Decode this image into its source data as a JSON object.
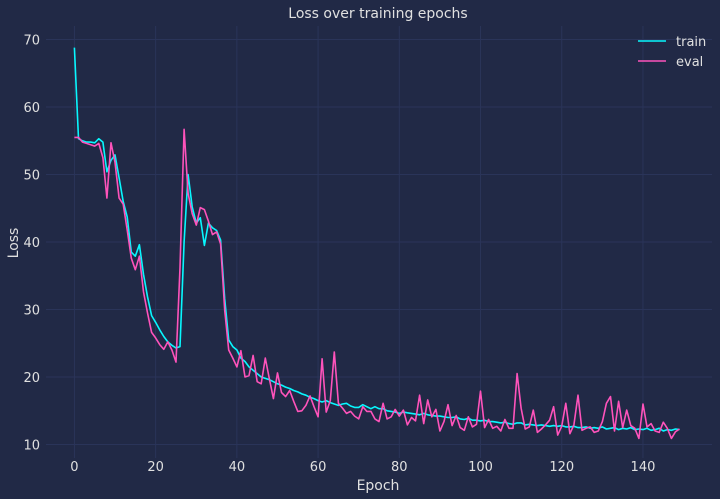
{
  "chart_data": {
    "type": "line",
    "title": "Loss over training epochs",
    "xlabel": "Epoch",
    "ylabel": "Loss",
    "xlim": [
      -7,
      157
    ],
    "ylim": [
      8,
      72
    ],
    "xticks": [
      0,
      20,
      40,
      60,
      80,
      100,
      120,
      140
    ],
    "yticks": [
      10,
      20,
      30,
      40,
      50,
      60,
      70
    ],
    "grid": true,
    "legend_position": "top-right",
    "colors": {
      "background": "#212946",
      "grid": "#2A3459",
      "text": "#e0e0e0"
    },
    "series": [
      {
        "name": "train",
        "color": "#08F7FE",
        "x": [
          0,
          1,
          2,
          3,
          4,
          5,
          6,
          7,
          8,
          9,
          10,
          11,
          12,
          13,
          14,
          15,
          16,
          17,
          18,
          19,
          20,
          21,
          22,
          23,
          24,
          25,
          26,
          27,
          28,
          29,
          30,
          31,
          32,
          33,
          34,
          35,
          36,
          37,
          38,
          39,
          40,
          41,
          42,
          43,
          44,
          45,
          46,
          47,
          48,
          49,
          50,
          51,
          52,
          53,
          54,
          55,
          56,
          57,
          58,
          59,
          60,
          61,
          62,
          63,
          64,
          65,
          66,
          67,
          68,
          69,
          70,
          71,
          72,
          73,
          74,
          75,
          76,
          77,
          78,
          79,
          80,
          81,
          82,
          83,
          84,
          85,
          86,
          87,
          88,
          89,
          90,
          91,
          92,
          93,
          94,
          95,
          96,
          97,
          98,
          99,
          100,
          101,
          102,
          103,
          104,
          105,
          106,
          107,
          108,
          109,
          110,
          111,
          112,
          113,
          114,
          115,
          116,
          117,
          118,
          119,
          120,
          121,
          122,
          123,
          124,
          125,
          126,
          127,
          128,
          129,
          130,
          131,
          132,
          133,
          134,
          135,
          136,
          137,
          138,
          139,
          140,
          141,
          142,
          143,
          144,
          145,
          146,
          147,
          148,
          149
        ],
        "y": [
          68.8,
          55.3,
          55.0,
          54.8,
          54.8,
          54.7,
          55.3,
          54.8,
          50.4,
          52.1,
          52.9,
          49.5,
          46.0,
          43.7,
          38.5,
          37.9,
          39.6,
          35.2,
          31.9,
          29.1,
          28.1,
          27.0,
          26.0,
          25.2,
          24.7,
          24.3,
          24.5,
          40.0,
          50.0,
          45.2,
          42.8,
          43.6,
          39.5,
          42.8,
          42.1,
          41.7,
          40.3,
          31.6,
          25.5,
          24.5,
          24.0,
          22.8,
          22.3,
          21.5,
          21.0,
          20.5,
          20.0,
          19.8,
          19.6,
          19.3,
          19.0,
          18.8,
          18.5,
          18.3,
          18.0,
          17.8,
          17.5,
          17.3,
          17.0,
          16.8,
          16.5,
          16.3,
          16.5,
          16.2,
          16.0,
          15.8,
          16.0,
          16.1,
          15.7,
          15.5,
          15.5,
          15.9,
          15.6,
          15.3,
          15.6,
          15.3,
          15.3,
          15.0,
          14.9,
          14.8,
          14.6,
          14.8,
          14.7,
          14.6,
          14.5,
          14.4,
          14.6,
          14.4,
          14.3,
          14.2,
          14.2,
          14.1,
          14.0,
          14.0,
          14.1,
          13.8,
          13.7,
          13.9,
          13.6,
          13.6,
          13.5,
          13.6,
          13.4,
          13.4,
          13.3,
          13.2,
          13.3,
          13.1,
          13.0,
          13.2,
          13.2,
          12.9,
          13.0,
          12.9,
          12.8,
          12.9,
          12.8,
          12.7,
          12.8,
          12.7,
          12.8,
          12.6,
          12.6,
          12.7,
          12.5,
          12.5,
          12.6,
          12.4,
          12.5,
          12.4,
          12.6,
          12.3,
          12.4,
          12.5,
          12.2,
          12.4,
          12.3,
          12.5,
          12.2,
          12.3,
          12.2,
          12.4,
          12.1,
          12.2,
          12.4,
          12.0,
          12.2,
          12.1,
          12.3,
          12.2
        ]
      },
      {
        "name": "eval",
        "color": "#FE53BB",
        "x": [
          0,
          1,
          2,
          3,
          4,
          5,
          6,
          7,
          8,
          9,
          10,
          11,
          12,
          13,
          14,
          15,
          16,
          17,
          18,
          19,
          20,
          21,
          22,
          23,
          24,
          25,
          26,
          27,
          28,
          29,
          30,
          31,
          32,
          33,
          34,
          35,
          36,
          37,
          38,
          39,
          40,
          41,
          42,
          43,
          44,
          45,
          46,
          47,
          48,
          49,
          50,
          51,
          52,
          53,
          54,
          55,
          56,
          57,
          58,
          59,
          60,
          61,
          62,
          63,
          64,
          65,
          66,
          67,
          68,
          69,
          70,
          71,
          72,
          73,
          74,
          75,
          76,
          77,
          78,
          79,
          80,
          81,
          82,
          83,
          84,
          85,
          86,
          87,
          88,
          89,
          90,
          91,
          92,
          93,
          94,
          95,
          96,
          97,
          98,
          99,
          100,
          101,
          102,
          103,
          104,
          105,
          106,
          107,
          108,
          109,
          110,
          111,
          112,
          113,
          114,
          115,
          116,
          117,
          118,
          119,
          120,
          121,
          122,
          123,
          124,
          125,
          126,
          127,
          128,
          129,
          130,
          131,
          132,
          133,
          134,
          135,
          136,
          137,
          138,
          139,
          140,
          141,
          142,
          143,
          144,
          145,
          146,
          147,
          148,
          149
        ],
        "y": [
          55.5,
          55.5,
          54.8,
          54.6,
          54.4,
          54.2,
          54.6,
          52.5,
          46.5,
          54.7,
          51.8,
          46.5,
          45.6,
          41.8,
          37.6,
          35.9,
          37.9,
          32.6,
          29.5,
          26.6,
          25.8,
          24.8,
          24.1,
          25.2,
          24.0,
          22.2,
          36.2,
          56.7,
          47.2,
          44.2,
          42.5,
          45.1,
          44.8,
          43.1,
          41.1,
          41.5,
          39.7,
          29.9,
          24.0,
          22.8,
          21.5,
          23.9,
          20.0,
          20.2,
          23.2,
          19.3,
          19.0,
          22.8,
          19.7,
          16.8,
          20.6,
          17.7,
          17.1,
          18.0,
          16.4,
          14.9,
          15.0,
          15.8,
          17.2,
          15.6,
          14.1,
          22.7,
          14.8,
          16.5,
          23.7,
          16.1,
          15.4,
          14.6,
          14.9,
          14.2,
          13.8,
          15.6,
          14.9,
          14.9,
          13.8,
          13.4,
          16.1,
          13.8,
          14.1,
          15.2,
          14.2,
          15.1,
          12.9,
          14.0,
          13.5,
          17.3,
          13.1,
          16.6,
          14.1,
          15.2,
          12.0,
          13.4,
          15.9,
          12.8,
          14.3,
          12.5,
          12.1,
          14.1,
          12.6,
          13.0,
          17.9,
          12.5,
          13.7,
          12.4,
          12.7,
          12.0,
          13.7,
          12.4,
          12.4,
          20.5,
          15.4,
          12.3,
          12.6,
          15.1,
          11.8,
          12.3,
          12.9,
          13.6,
          15.6,
          11.4,
          12.7,
          16.1,
          11.6,
          12.9,
          17.3,
          12.1,
          12.4,
          12.6,
          11.8,
          12.0,
          13.4,
          16.1,
          17.1,
          12.0,
          16.4,
          12.5,
          15.1,
          12.8,
          12.4,
          10.9,
          16.0,
          12.6,
          13.1,
          12.0,
          11.8,
          13.3,
          12.4,
          10.9,
          11.9,
          12.3
        ]
      }
    ]
  }
}
